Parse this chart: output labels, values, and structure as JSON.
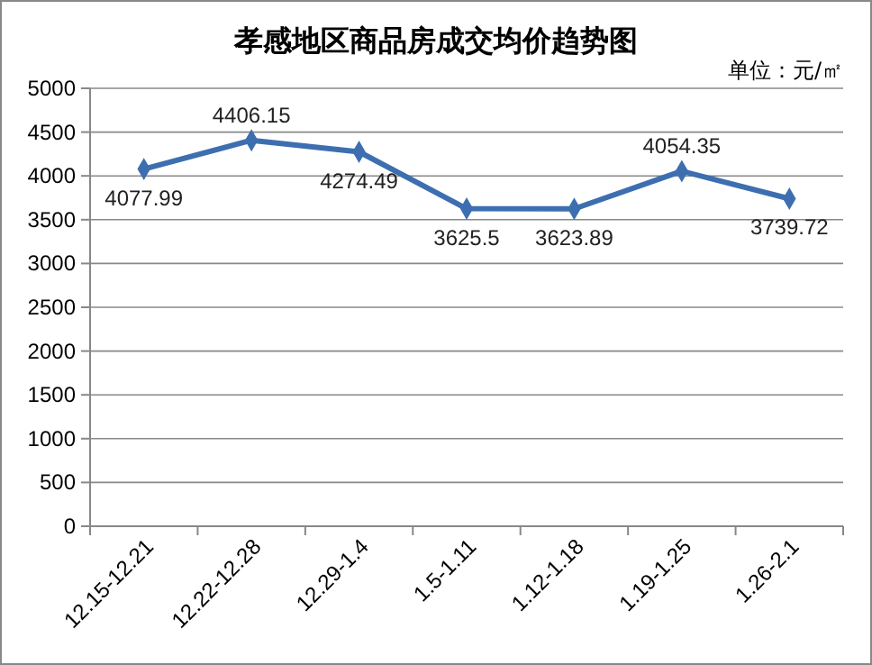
{
  "chart_data": {
    "type": "line",
    "title": "孝感地区商品房成交均价趋势图",
    "annotations": [
      "单位：元/㎡"
    ],
    "categories": [
      "12.15-12.21",
      "12.22-12.28",
      "12.29-1.4",
      "1.5-1.11",
      "1.12-1.18",
      "1.19-1.25",
      "1.26-2.1"
    ],
    "series": [
      {
        "color": "#3d6fb0",
        "values": [
          4077.99,
          4406.15,
          4274.49,
          3625.5,
          3623.89,
          4054.35,
          3739.72
        ]
      }
    ],
    "ylim": [
      0,
      5000
    ],
    "yticks": [
      0,
      500,
      1000,
      1500,
      2000,
      2500,
      3000,
      3500,
      4000,
      4500,
      5000
    ],
    "grid": "y",
    "marker": "diamond",
    "line_style": "solid",
    "data_labels": true
  }
}
